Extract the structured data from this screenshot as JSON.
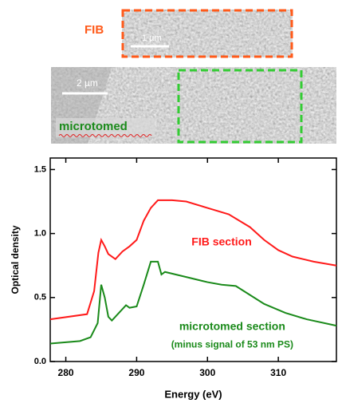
{
  "images": {
    "fib_label": "FIB",
    "fib_scale": "1 µm",
    "micro_scale": "2 µm",
    "micro_label": "microtomed"
  },
  "chart_data": {
    "type": "line",
    "xlabel": "Energy (eV)",
    "ylabel": "Optical density",
    "xlim": [
      277.8,
      318.2
    ],
    "ylim": [
      0,
      1.59
    ],
    "xticks": [
      280,
      290,
      300,
      310
    ],
    "yticks": [
      {
        "value": 0,
        "label": "0.0"
      },
      0.5,
      {
        "value": 1,
        "label": "1.0"
      },
      1.5
    ],
    "series": [
      {
        "color": "#ff1a1a",
        "x": [
          277.8,
          283,
          284,
          284.6,
          285,
          285.5,
          286,
          287,
          288,
          289,
          290,
          291,
          292,
          293,
          295,
          297,
          300,
          303,
          306,
          308,
          310,
          312,
          315,
          318.2
        ],
        "values": [
          0.33,
          0.37,
          0.55,
          0.85,
          0.95,
          0.9,
          0.84,
          0.8,
          0.86,
          0.9,
          0.95,
          1.1,
          1.2,
          1.26,
          1.26,
          1.25,
          1.2,
          1.15,
          1.05,
          0.95,
          0.87,
          0.82,
          0.78,
          0.75
        ]
      },
      {
        "color": "#1a8a1a",
        "x": [
          277.8,
          282,
          283.5,
          284.5,
          285,
          285.5,
          286,
          286.5,
          287.5,
          288.5,
          289,
          290,
          291,
          292,
          293,
          293.5,
          294,
          297,
          300,
          302,
          304,
          306,
          308,
          311,
          314,
          318.2
        ],
        "values": [
          0.14,
          0.16,
          0.19,
          0.3,
          0.6,
          0.5,
          0.35,
          0.32,
          0.38,
          0.44,
          0.42,
          0.43,
          0.6,
          0.78,
          0.78,
          0.68,
          0.7,
          0.66,
          0.62,
          0.6,
          0.59,
          0.52,
          0.45,
          0.38,
          0.33,
          0.28
        ]
      }
    ],
    "annotations": [
      {
        "text": "FIB section",
        "x": 302,
        "y": 0.93,
        "color": "#ff1a1a"
      },
      {
        "text": "microtomed section",
        "x": 303.5,
        "y": 0.27,
        "color": "#1a8a1a"
      },
      {
        "text": "(minus signal of 53 nm PS)",
        "x": 303.5,
        "y": 0.13,
        "color": "#1a8a1a"
      }
    ]
  }
}
